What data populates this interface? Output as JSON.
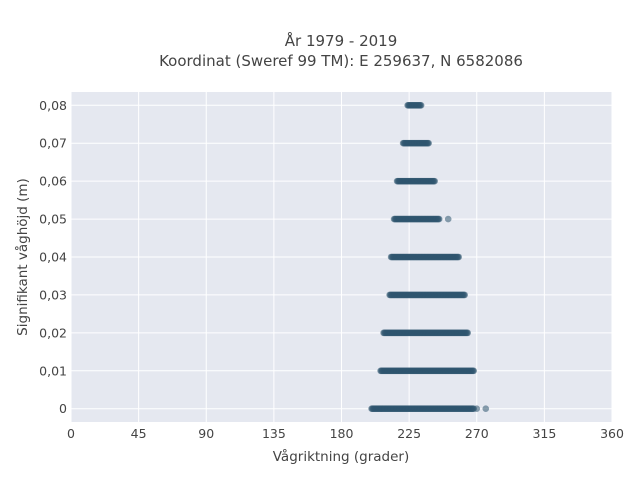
{
  "chart_data": {
    "type": "scatter",
    "title_line1": "År 1979 - 2019",
    "title_line2": "Koordinat (Sweref 99 TM): E 259637, N 6582086",
    "xlabel": "Vågriktning (grader)",
    "ylabel": "Signifikant våghöjd (m)",
    "xlim": [
      0,
      360
    ],
    "ylim": [
      -0.0035,
      0.0835
    ],
    "x_ticks": [
      0,
      45,
      90,
      135,
      180,
      225,
      270,
      315,
      360
    ],
    "x_tick_labels": [
      "0",
      "45",
      "90",
      "135",
      "180",
      "225",
      "270",
      "315",
      "360"
    ],
    "y_ticks": [
      0,
      0.01,
      0.02,
      0.03,
      0.04,
      0.05,
      0.06,
      0.07,
      0.08
    ],
    "y_tick_labels": [
      "0",
      "0,01",
      "0,02",
      "0,03",
      "0,04",
      "0,05",
      "0,06",
      "0,07",
      "0,08"
    ],
    "grid": true,
    "legend": "none",
    "colors": {
      "marker": "#2f5570",
      "plot_bg": "#e5e8f0",
      "grid": "#ffffff"
    },
    "series": [
      {
        "rows": [
          {
            "y": 0.0,
            "x_min": 200,
            "x_max": 268,
            "outliers": [
              270,
              276
            ]
          },
          {
            "y": 0.01,
            "x_min": 206,
            "x_max": 268,
            "outliers": []
          },
          {
            "y": 0.02,
            "x_min": 208,
            "x_max": 264,
            "outliers": []
          },
          {
            "y": 0.03,
            "x_min": 212,
            "x_max": 262,
            "outliers": []
          },
          {
            "y": 0.04,
            "x_min": 213,
            "x_max": 258,
            "outliers": []
          },
          {
            "y": 0.05,
            "x_min": 215,
            "x_max": 245,
            "outliers": [
              251
            ]
          },
          {
            "y": 0.06,
            "x_min": 217,
            "x_max": 242,
            "outliers": []
          },
          {
            "y": 0.07,
            "x_min": 221,
            "x_max": 238,
            "outliers": []
          },
          {
            "y": 0.08,
            "x_min": 224,
            "x_max": 233,
            "outliers": []
          }
        ]
      }
    ]
  }
}
